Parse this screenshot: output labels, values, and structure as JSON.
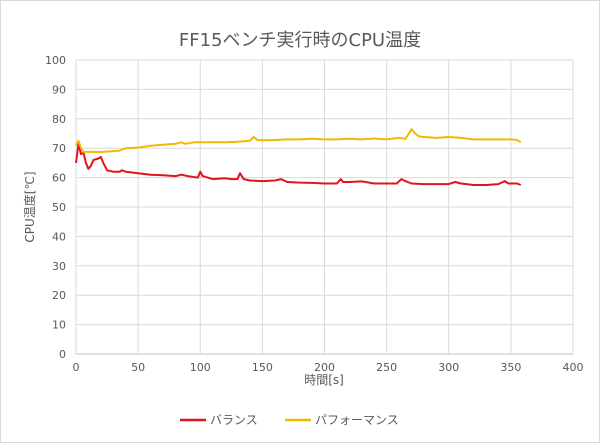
{
  "chart_data": {
    "type": "line",
    "title": "FF15ベンチ実行時のCPU温度",
    "xlabel": "時間[s]",
    "ylabel": "CPU温度[℃]",
    "xlim": [
      0,
      400
    ],
    "ylim": [
      0,
      100
    ],
    "xticks": [
      0,
      50,
      100,
      150,
      200,
      250,
      300,
      350,
      400
    ],
    "yticks": [
      0,
      10,
      20,
      30,
      40,
      50,
      60,
      70,
      80,
      90,
      100
    ],
    "grid": true,
    "legend_position": "bottom",
    "series": [
      {
        "name": "バランス",
        "color": "#e0141e",
        "x": [
          0,
          2,
          4,
          6,
          8,
          10,
          12,
          14,
          18,
          20,
          22,
          25,
          30,
          35,
          37,
          40,
          50,
          60,
          70,
          80,
          85,
          90,
          98,
          100,
          102,
          110,
          120,
          125,
          130,
          132,
          135,
          140,
          150,
          160,
          165,
          170,
          180,
          190,
          200,
          210,
          213,
          215,
          220,
          230,
          240,
          250,
          258,
          262,
          265,
          270,
          280,
          290,
          300,
          305,
          310,
          320,
          330,
          340,
          345,
          348,
          355,
          358
        ],
        "y": [
          65,
          71.5,
          68,
          68.5,
          65,
          63,
          64,
          66,
          66.5,
          67,
          65,
          62.5,
          62,
          62,
          62.5,
          62,
          61.5,
          61,
          60.8,
          60.5,
          61,
          60.5,
          60,
          62,
          60.5,
          59.5,
          59.8,
          59.5,
          59.5,
          61.5,
          59.5,
          59,
          58.8,
          59,
          59.5,
          58.5,
          58.3,
          58.2,
          58,
          58,
          59.5,
          58.5,
          58.5,
          58.7,
          58,
          58,
          58,
          59.5,
          58.8,
          58,
          57.8,
          57.8,
          57.8,
          58.5,
          58,
          57.5,
          57.5,
          57.8,
          58.8,
          58,
          58,
          57.5
        ]
      },
      {
        "name": "パフォーマンス",
        "color": "#f5b800",
        "x": [
          0,
          2,
          4,
          6,
          10,
          20,
          30,
          35,
          40,
          50,
          60,
          70,
          80,
          85,
          88,
          95,
          100,
          110,
          120,
          130,
          140,
          143,
          146,
          150,
          160,
          170,
          180,
          190,
          200,
          210,
          220,
          230,
          240,
          250,
          260,
          265,
          268,
          270,
          273,
          276,
          280,
          290,
          300,
          310,
          320,
          330,
          340,
          350,
          355,
          358
        ],
        "y": [
          71,
          72.5,
          70,
          68.7,
          68.8,
          68.7,
          69,
          69.2,
          70,
          70.2,
          70.8,
          71.2,
          71.5,
          72,
          71.5,
          72,
          72,
          72,
          72,
          72.2,
          72.5,
          73.8,
          72.8,
          72.7,
          72.8,
          73,
          73,
          73.2,
          73,
          73,
          73.2,
          73,
          73.3,
          73,
          73.5,
          73.2,
          75,
          76.5,
          75,
          74,
          73.8,
          73.5,
          73.8,
          73.5,
          73,
          73,
          73,
          73,
          72.8,
          72
        ]
      }
    ]
  }
}
